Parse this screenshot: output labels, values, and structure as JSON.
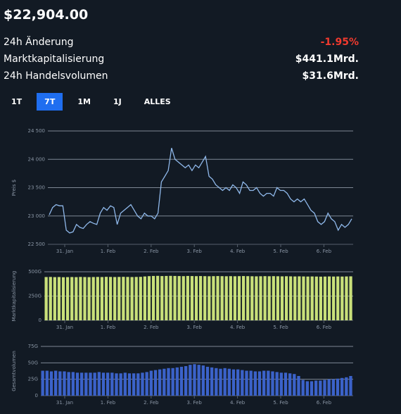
{
  "header": {
    "price": "$22,904.00",
    "rows": [
      {
        "label": "24h Änderung",
        "value": "-1.95%"
      },
      {
        "label": "Marktkapitalisierung",
        "value": "$441.1Mrd."
      },
      {
        "label": "24h Handelsvolumen",
        "value": "$31.6Mrd."
      }
    ]
  },
  "tabs": [
    "1T",
    "7T",
    "1M",
    "1J",
    "ALLES"
  ],
  "active_tab": "7T",
  "chart_data": [
    {
      "type": "line",
      "y_label": "Preis $",
      "color": "#8fb8ea",
      "grid": true,
      "xtick_labels": [
        "31. Jan",
        "1. Feb",
        "2. Feb",
        "3. Feb",
        "4. Feb",
        "5. Feb",
        "6. Feb"
      ],
      "ylim": [
        22500,
        24500
      ],
      "yticks": [
        {
          "value": 22500,
          "label": "22 500"
        },
        {
          "value": 23000,
          "label": "23 000"
        },
        {
          "value": 23500,
          "label": "23 500"
        },
        {
          "value": 24000,
          "label": "24 000"
        },
        {
          "value": 24500,
          "label": "24 500"
        }
      ],
      "values": [
        23020,
        23150,
        23200,
        23180,
        23180,
        22750,
        22700,
        22720,
        22850,
        22800,
        22780,
        22850,
        22900,
        22870,
        22850,
        23050,
        23150,
        23100,
        23180,
        23150,
        22850,
        23050,
        23100,
        23150,
        23200,
        23100,
        23000,
        22950,
        23050,
        23000,
        23000,
        22950,
        23050,
        23600,
        23700,
        23800,
        24200,
        24000,
        23950,
        23900,
        23850,
        23900,
        23800,
        23900,
        23850,
        23950,
        24050,
        23700,
        23650,
        23550,
        23500,
        23450,
        23500,
        23450,
        23550,
        23500,
        23400,
        23600,
        23550,
        23450,
        23450,
        23500,
        23400,
        23350,
        23400,
        23400,
        23350,
        23500,
        23450,
        23450,
        23400,
        23300,
        23250,
        23300,
        23250,
        23300,
        23200,
        23100,
        23050,
        22900,
        22850,
        22900,
        23050,
        22950,
        22900,
        22750,
        22850,
        22800,
        22850,
        22950
      ]
    },
    {
      "type": "bar",
      "y_label": "Marktkapitalisierung",
      "color": "#c9e07a",
      "grid": true,
      "xtick_labels": [
        "31. Jan",
        "1. Feb",
        "2. Feb",
        "3. Feb",
        "4. Feb",
        "5. Feb",
        "6. Feb"
      ],
      "ylim": [
        0,
        500
      ],
      "yticks": [
        0,
        {
          "value": 250,
          "label": "250G"
        },
        {
          "value": 500,
          "label": "500G"
        }
      ],
      "values": [
        446,
        447,
        445,
        446,
        444,
        445,
        446,
        445,
        447,
        446,
        445,
        446,
        447,
        446,
        448,
        447,
        446,
        447,
        448,
        447,
        446,
        447,
        448,
        452,
        455,
        457,
        458,
        456,
        457,
        458,
        457,
        456,
        455,
        457,
        456,
        455,
        456,
        455,
        454,
        455,
        456,
        455,
        454,
        455,
        454,
        455,
        456,
        455,
        454,
        453,
        454,
        455,
        454,
        455,
        454,
        453,
        454,
        453,
        452,
        453,
        452,
        451,
        452,
        451,
        450,
        451,
        452,
        451,
        452,
        451,
        452,
        453
      ]
    },
    {
      "type": "bar",
      "y_label": "Gesamtvolumen",
      "color": "#3b62c9",
      "grid": true,
      "xtick_labels": [
        "31. Jan",
        "1. Feb",
        "2. Feb",
        "3. Feb",
        "4. Feb",
        "5. Feb",
        "6. Feb"
      ],
      "ylim": [
        0,
        75
      ],
      "yticks": [
        0,
        {
          "value": 25,
          "label": "25G"
        },
        {
          "value": 50,
          "label": "50G"
        },
        {
          "value": 75,
          "label": "75G"
        }
      ],
      "values": [
        38,
        38,
        37,
        38,
        37,
        37,
        36,
        36,
        35,
        35,
        35,
        35,
        35,
        36,
        35,
        35,
        35,
        34,
        34,
        35,
        34,
        34,
        34,
        35,
        36,
        38,
        39,
        40,
        41,
        42,
        42,
        43,
        44,
        45,
        47,
        48,
        47,
        46,
        44,
        43,
        42,
        41,
        42,
        41,
        40,
        40,
        39,
        38,
        38,
        37,
        37,
        38,
        38,
        37,
        36,
        35,
        35,
        34,
        33,
        30,
        24,
        22,
        22,
        23,
        23,
        24,
        25,
        25,
        26,
        27,
        28,
        30
      ]
    }
  ]
}
